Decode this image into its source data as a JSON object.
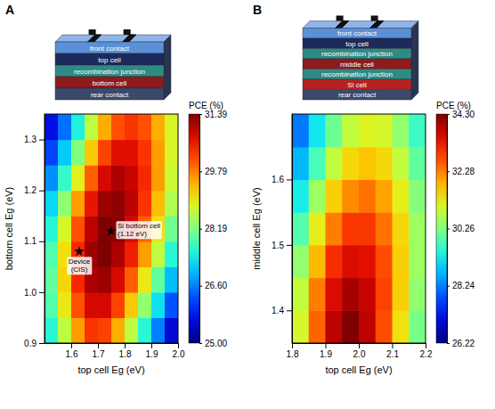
{
  "chart_data": [
    {
      "type": "heatmap",
      "title": "A",
      "xlabel": "top cell Eg (eV)",
      "ylabel": "bottom cell Eg (eV)",
      "xlim": [
        1.5,
        2.0
      ],
      "xticks": [
        1.6,
        1.7,
        1.8,
        1.9,
        {
          "value": 2,
          "label": "2.0"
        }
      ],
      "ylim": [
        0.9,
        1.35
      ],
      "yticks": [
        0.9,
        {
          "value": 1,
          "label": "1.0"
        },
        1.1,
        1.2,
        1.3
      ],
      "x": [
        1.525,
        1.575,
        1.625,
        1.675,
        1.725,
        1.775,
        1.825,
        1.875,
        1.925,
        1.975
      ],
      "y": [
        0.925,
        0.975,
        1.025,
        1.075,
        1.125,
        1.175,
        1.225,
        1.275,
        1.325
      ],
      "z": [
        [
          27.6,
          28.6,
          29.6,
          30.3,
          30.2,
          29.5,
          28.6,
          27.6,
          26.6,
          25.6
        ],
        [
          27.9,
          29.0,
          30.1,
          30.8,
          30.8,
          30.2,
          29.3,
          28.3,
          27.3,
          26.3
        ],
        [
          28.0,
          29.2,
          30.4,
          31.1,
          31.2,
          30.8,
          30.0,
          29.0,
          28.0,
          27.0
        ],
        [
          27.9,
          29.1,
          30.4,
          31.2,
          31.39,
          31.1,
          30.5,
          29.6,
          28.6,
          27.6
        ],
        [
          27.6,
          28.8,
          30.1,
          31.0,
          31.39,
          31.3,
          30.8,
          30.0,
          29.1,
          28.1
        ],
        [
          27.2,
          28.3,
          29.6,
          30.6,
          31.2,
          31.3,
          31.0,
          30.3,
          29.4,
          28.5
        ],
        [
          26.7,
          27.7,
          28.9,
          30.0,
          30.8,
          31.1,
          30.9,
          30.4,
          29.6,
          28.7
        ],
        [
          26.2,
          27.1,
          28.2,
          29.3,
          30.2,
          30.7,
          30.7,
          30.3,
          29.6,
          28.8
        ],
        [
          25.7,
          26.5,
          27.5,
          28.6,
          29.5,
          30.1,
          30.3,
          30.1,
          29.5,
          28.8
        ]
      ],
      "colorbar": {
        "label": "PCE (%)",
        "range": [
          25,
          31.39
        ],
        "ticks": [
          {
            "value": 25,
            "label": "25.00"
          },
          {
            "value": 26.6,
            "label": "26.60"
          },
          28.19,
          29.79,
          31.39
        ]
      },
      "annotations": [
        {
          "text": "Device (CIS)",
          "x": 1.63,
          "y": 1.08
        },
        {
          "text": "Si bottom cell (1.12 eV)",
          "x": 1.75,
          "y": 1.12
        }
      ],
      "inset_layers": [
        "front contact",
        "top cell",
        "recombination junction",
        "bottom cell",
        "rear contact"
      ]
    },
    {
      "type": "heatmap",
      "title": "B",
      "xlabel": "top cell Eg (eV)",
      "ylabel": "middle cell Eg (eV)",
      "xlim": [
        1.8,
        2.2
      ],
      "xticks": [
        1.8,
        1.9,
        {
          "value": 2,
          "label": "2.0"
        },
        2.1,
        2.2
      ],
      "ylim": [
        1.35,
        1.7
      ],
      "yticks": [
        1.4,
        1.5,
        1.6
      ],
      "x": [
        1.825,
        1.875,
        1.925,
        1.975,
        2.025,
        2.075,
        2.125,
        2.175
      ],
      "y": [
        1.375,
        1.425,
        1.475,
        1.525,
        1.575,
        1.625,
        1.675
      ],
      "z": [
        [
          31.0,
          32.5,
          33.8,
          34.3,
          33.8,
          32.7,
          31.4,
          30.2
        ],
        [
          30.8,
          32.3,
          33.5,
          34.0,
          33.7,
          32.8,
          31.6,
          30.4
        ],
        [
          30.4,
          31.8,
          33.0,
          33.5,
          33.4,
          32.7,
          31.6,
          30.5
        ],
        [
          29.9,
          31.2,
          32.3,
          32.9,
          32.9,
          32.4,
          31.5,
          30.5
        ],
        [
          29.3,
          30.5,
          31.6,
          32.2,
          32.4,
          32.0,
          31.2,
          30.3
        ],
        [
          28.7,
          29.8,
          30.8,
          31.5,
          31.7,
          31.5,
          30.8,
          30.0
        ],
        [
          28.2,
          29.2,
          30.1,
          30.8,
          31.1,
          31.0,
          30.4,
          29.7
        ]
      ],
      "colorbar": {
        "label": "PCE (%)",
        "range": [
          26.22,
          34.3
        ],
        "ticks": [
          26.22,
          28.24,
          30.26,
          32.28,
          {
            "value": 34.3,
            "label": "34.30"
          }
        ]
      },
      "inset_layers": [
        "front contact",
        "top cell",
        "recombination junction",
        "middle cell",
        "recombination junction",
        "Si cell",
        "rear contact"
      ]
    }
  ]
}
